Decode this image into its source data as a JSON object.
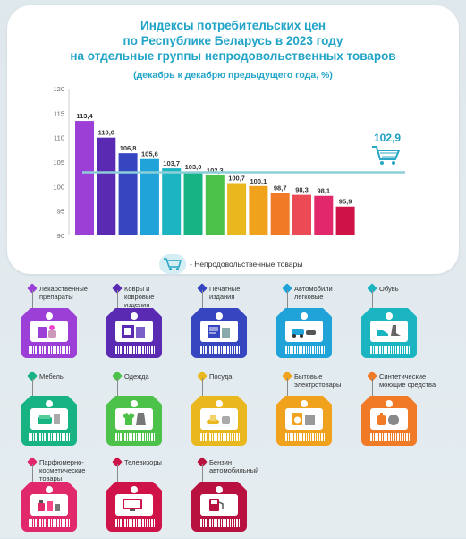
{
  "title_lines": [
    "Индексы потребительских цен",
    "по Республике Беларусь в 2023 году",
    "на отдельные группы непродовольственных товаров"
  ],
  "subtitle": "(декабрь к декабрю предыдущего года, %)",
  "legend_label": "- Непродовольственные товары",
  "chart_data": {
    "type": "bar",
    "title": "Индексы потребительских цен по Республике Беларусь в 2023 году на отдельные группы непродовольственных товаров",
    "subtitle": "(декабрь к декабрю предыдущего года, %)",
    "categories": [
      "Лекарственные препараты",
      "Ковры и ковровые изделия",
      "Печатные издания",
      "Автомобили легковые",
      "Обувь",
      "Мебель",
      "Одежда",
      "Посуда",
      "Бытовые электротовары",
      "Синтетические моющие средства",
      "Парфюмерно-косметические товары",
      "Телевизоры",
      "Бензин автомобильный"
    ],
    "values": [
      113.4,
      110.0,
      106.8,
      105.6,
      103.7,
      103.0,
      102.3,
      100.7,
      100.1,
      98.7,
      98.3,
      98.1,
      95.9
    ],
    "value_labels": [
      "113,4",
      "110,0",
      "106,8",
      "105,6",
      "103,7",
      "103,0",
      "102,3",
      "100,7",
      "100,1",
      "98,7",
      "98,3",
      "98,1",
      "95,9"
    ],
    "bar_colors": [
      "#9b3fd6",
      "#5a2bb2",
      "#3646c0",
      "#1fa3d8",
      "#1bb5c1",
      "#17b382",
      "#4cc24a",
      "#e9b81e",
      "#f0a21c",
      "#f07a25",
      "#ec4a55",
      "#e0286a",
      "#cf1248"
    ],
    "reference": {
      "label": "Непродовольственные товары",
      "value": 102.9,
      "value_label": "102,9",
      "color": "#8ccfd9"
    },
    "yticks": [
      120,
      115,
      110,
      105,
      100,
      95,
      90
    ],
    "ylim": [
      90,
      120
    ],
    "grid": false
  },
  "tags": [
    {
      "label": "Лекарственные\nпрепараты",
      "color": "#9b3fd6",
      "icon": "medicine-icon"
    },
    {
      "label": "Ковры и\nковровые\nизделия",
      "color": "#5a2bb2",
      "icon": "carpet-icon"
    },
    {
      "label": "Печатные\nиздания",
      "color": "#3646c0",
      "icon": "newspaper-icon"
    },
    {
      "label": "Автомобили\nлегковые",
      "color": "#1fa3d8",
      "icon": "car-icon"
    },
    {
      "label": "Обувь",
      "color": "#1bb5c1",
      "icon": "shoe-icon"
    },
    {
      "label": "Мебель",
      "color": "#17b382",
      "icon": "sofa-icon"
    },
    {
      "label": "Одежда",
      "color": "#4cc24a",
      "icon": "clothes-icon"
    },
    {
      "label": "Посуда",
      "color": "#e9b81e",
      "icon": "dishes-icon"
    },
    {
      "label": "Бытовые\nэлектротовары",
      "color": "#f0a21c",
      "icon": "appliance-icon"
    },
    {
      "label": "Синтетические\nмоющие средства",
      "color": "#f07a25",
      "icon": "detergent-icon"
    },
    {
      "label": "Парфюмерно-\nкосметические\nтовары",
      "color": "#e0286a",
      "icon": "perfume-icon"
    },
    {
      "label": "Телевизоры",
      "color": "#cf1248",
      "icon": "tv-icon"
    },
    {
      "label": "Бензин\nавтомобильный",
      "color": "#b8103f",
      "icon": "fuel-icon"
    }
  ]
}
